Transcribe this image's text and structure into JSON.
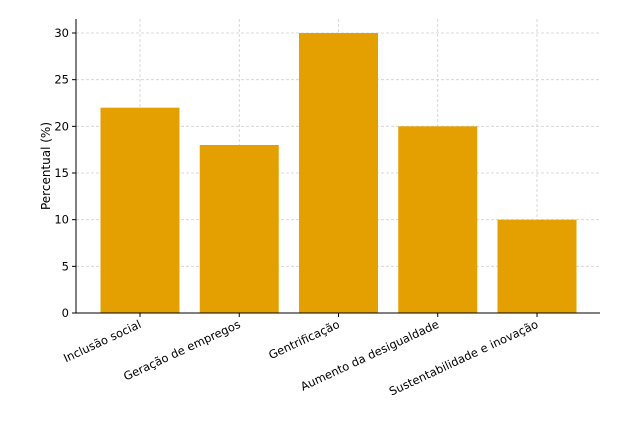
{
  "chart_data": {
    "type": "bar",
    "categories": [
      "Inclusão social",
      "Geração de empregos",
      "Gentrificação",
      "Aumento da desigualdade",
      "Sustentabilidade e inovação"
    ],
    "values": [
      22,
      18,
      30,
      20,
      10
    ],
    "title": "",
    "xlabel": "",
    "ylabel": "Percentual (%)",
    "ylim": [
      0,
      31.5
    ],
    "yticks": [
      0,
      5,
      10,
      15,
      20,
      25,
      30
    ],
    "grid": true,
    "bar_color": "#E3A000",
    "legend": "none"
  }
}
